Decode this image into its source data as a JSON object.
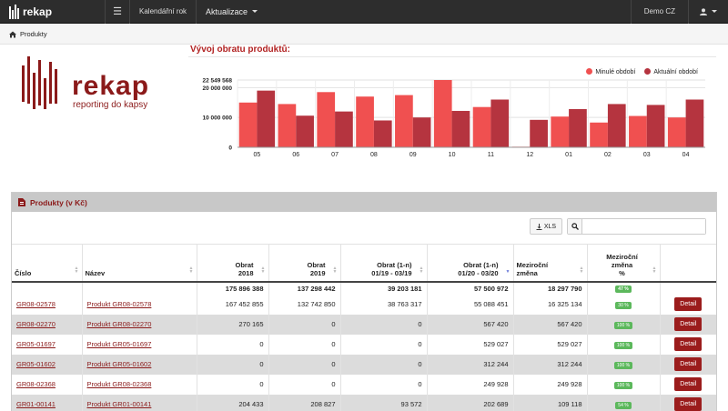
{
  "navbar": {
    "brand": "rekap",
    "menu_icon": "hamburger-icon",
    "calendar_year": "Kalendářní rok",
    "updates": "Aktualizace",
    "user_org": "Demo CZ",
    "user_icon": "user-icon"
  },
  "breadcrumb": {
    "icon": "home-icon",
    "label": "Produkty"
  },
  "logo": {
    "word": "rekap",
    "tagline": "reporting do kapsy"
  },
  "chart_data": {
    "type": "bar",
    "title": "Vývoj obratu produktů:",
    "categories": [
      "05",
      "06",
      "07",
      "08",
      "09",
      "10",
      "11",
      "12",
      "01",
      "02",
      "03",
      "04"
    ],
    "series": [
      {
        "name": "Minulé období",
        "color": "#f05050",
        "values": [
          15000000,
          14500000,
          18500000,
          17000000,
          17500000,
          22549568,
          13500000,
          200000,
          10300000,
          8300000,
          10500000,
          10000000
        ]
      },
      {
        "name": "Aktuální období",
        "color": "#b5343f",
        "values": [
          19000000,
          10600000,
          12000000,
          9000000,
          10000000,
          12200000,
          16000000,
          9200000,
          12800000,
          14500000,
          14200000,
          16000000
        ]
      }
    ],
    "yticks": [
      "0",
      "10 000 000",
      "20 000 000",
      "22 549 568"
    ],
    "ytick_values": [
      0,
      10000000,
      20000000,
      22549568
    ],
    "ylim": [
      0,
      22549568
    ],
    "legend_position": "top-right",
    "grid": true
  },
  "panel": {
    "title": "Produkty (v Kč)",
    "doc_icon": "file-icon",
    "xls_label": "XLS",
    "xls_icon": "download-icon",
    "search_icon": "search-icon",
    "search_value": ""
  },
  "table": {
    "headers": [
      {
        "l1": "Číslo",
        "l2": ""
      },
      {
        "l1": "Název",
        "l2": ""
      },
      {
        "l1": "Obrat",
        "l2": "2018"
      },
      {
        "l1": "Obrat",
        "l2": "2019"
      },
      {
        "l1": "Obrat (1-n)",
        "l2": "01/19 - 03/19"
      },
      {
        "l1": "Obrat (1-n)",
        "l2": "01/20 - 03/20"
      },
      {
        "l1": "Meziroční",
        "l2": "změna"
      },
      {
        "l1": "Meziroční",
        "l2": "změna",
        "l3": "%"
      },
      {
        "l1": "",
        "l2": ""
      }
    ],
    "totals": [
      "175 896 388",
      "137 298 442",
      "39 203 181",
      "57 500 972",
      "18 297 790",
      "47 %"
    ],
    "rows": [
      {
        "code": "GR08-02578",
        "name": "Produkt GR08-02578",
        "o2018": "167 452 855",
        "o2019": "132 742 850",
        "o1": "38 763 317",
        "o2": "55 088 451",
        "diff": "16 325 134",
        "pct": "30 %",
        "action": "Detail"
      },
      {
        "code": "GR08-02270",
        "name": "Produkt GR08-02270",
        "o2018": "270 165",
        "o2019": "0",
        "o1": "0",
        "o2": "567 420",
        "diff": "567 420",
        "pct": "100 %",
        "action": "Detail"
      },
      {
        "code": "GR05-01697",
        "name": "Produkt GR05-01697",
        "o2018": "0",
        "o2019": "0",
        "o1": "0",
        "o2": "529 027",
        "diff": "529 027",
        "pct": "100 %",
        "action": "Detail"
      },
      {
        "code": "GR05-01602",
        "name": "Produkt GR05-01602",
        "o2018": "0",
        "o2019": "0",
        "o1": "0",
        "o2": "312 244",
        "diff": "312 244",
        "pct": "100 %",
        "action": "Detail"
      },
      {
        "code": "GR08-02368",
        "name": "Produkt GR08-02368",
        "o2018": "0",
        "o2019": "0",
        "o1": "0",
        "o2": "249 928",
        "diff": "249 928",
        "pct": "100 %",
        "action": "Detail"
      },
      {
        "code": "GR01-00141",
        "name": "Produkt GR01-00141",
        "o2018": "204 433",
        "o2019": "208 827",
        "o1": "93 572",
        "o2": "202 689",
        "diff": "109 118",
        "pct": "54 %",
        "action": "Detail"
      }
    ]
  }
}
